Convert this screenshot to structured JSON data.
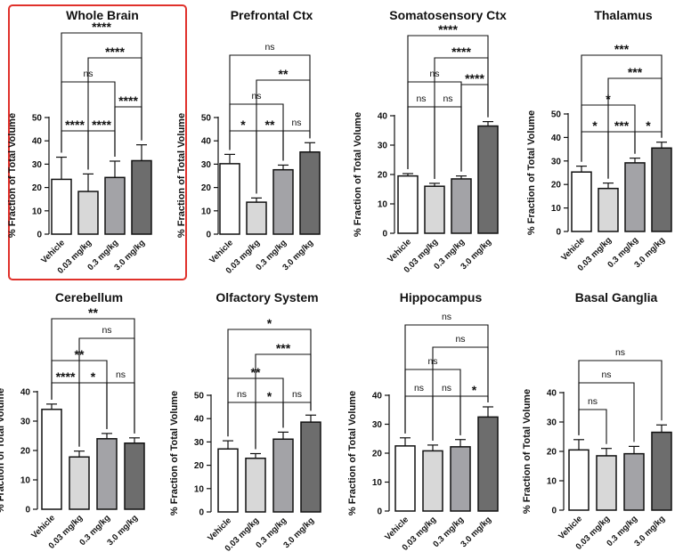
{
  "highlight_color": "#e0312b",
  "bar_fills": [
    "#ffffff",
    "#d8d8d8",
    "#a3a3a7",
    "#6d6d6d"
  ],
  "chart_data": [
    {
      "type": "bar",
      "title": "Whole Brain",
      "ylabel": "% Fraction of Total Volume",
      "categories": [
        "Vehicle",
        "0.03 mg/kg",
        "0.3 mg/kg",
        "3.0 mg/kg"
      ],
      "values": [
        23.5,
        18.3,
        24.3,
        31.5
      ],
      "errors": [
        9.5,
        7.5,
        7.0,
        6.8
      ],
      "ylim": [
        0,
        50
      ],
      "yticks": [
        0,
        10,
        20,
        30,
        40,
        50
      ],
      "highlighted": true,
      "comparisons": [
        {
          "pair": [
            0,
            1
          ],
          "label": "****"
        },
        {
          "pair": [
            2,
            3
          ],
          "label": "****"
        },
        {
          "pair": [
            1,
            2
          ],
          "label": "****"
        },
        {
          "pair": [
            0,
            2
          ],
          "label": "ns"
        },
        {
          "pair": [
            1,
            3
          ],
          "label": "****"
        },
        {
          "pair": [
            0,
            3
          ],
          "label": "****"
        }
      ]
    },
    {
      "type": "bar",
      "title": "Prefrontal Ctx",
      "ylabel": "% Fraction of Total Volume",
      "categories": [
        "Vehicle",
        "0.03 mg/kg",
        "0.3 mg/kg",
        "3.0 mg/kg"
      ],
      "values": [
        30.2,
        13.7,
        27.6,
        35.2
      ],
      "errors": [
        4.0,
        1.8,
        2.0,
        4.0
      ],
      "ylim": [
        0,
        50
      ],
      "yticks": [
        0,
        10,
        20,
        30,
        40,
        50
      ],
      "highlighted": false,
      "comparisons": [
        {
          "pair": [
            0,
            1
          ],
          "label": "*"
        },
        {
          "pair": [
            1,
            2
          ],
          "label": "**"
        },
        {
          "pair": [
            2,
            3
          ],
          "label": "ns"
        },
        {
          "pair": [
            0,
            2
          ],
          "label": "ns"
        },
        {
          "pair": [
            1,
            3
          ],
          "label": "**"
        },
        {
          "pair": [
            0,
            3
          ],
          "label": "ns"
        }
      ]
    },
    {
      "type": "bar",
      "title": "Somatosensory Ctx",
      "ylabel": "% Fraction of Total Volume",
      "categories": [
        "Vehicle",
        "0.03 mg/kg",
        "0.3 mg/kg",
        "3.0 mg/kg"
      ],
      "values": [
        19.5,
        16.0,
        18.5,
        36.5
      ],
      "errors": [
        0.8,
        1.0,
        1.0,
        1.5
      ],
      "ylim": [
        0,
        40
      ],
      "yticks": [
        0,
        10,
        20,
        30,
        40
      ],
      "highlighted": false,
      "comparisons": [
        {
          "pair": [
            0,
            1
          ],
          "label": "ns"
        },
        {
          "pair": [
            1,
            2
          ],
          "label": "ns"
        },
        {
          "pair": [
            2,
            3
          ],
          "label": "****"
        },
        {
          "pair": [
            0,
            2
          ],
          "label": "ns"
        },
        {
          "pair": [
            1,
            3
          ],
          "label": "****"
        },
        {
          "pair": [
            0,
            3
          ],
          "label": "****"
        }
      ]
    },
    {
      "type": "bar",
      "title": "Thalamus",
      "ylabel": "% Fraction of Total Volume",
      "categories": [
        "Vehicle",
        "0.03 mg/kg",
        "0.3 mg/kg",
        "3.0 mg/kg"
      ],
      "values": [
        25.3,
        18.3,
        29.2,
        35.5
      ],
      "errors": [
        2.5,
        2.3,
        2.0,
        2.5
      ],
      "ylim": [
        0,
        50
      ],
      "yticks": [
        0,
        10,
        20,
        30,
        40,
        50
      ],
      "highlighted": false,
      "comparisons": [
        {
          "pair": [
            0,
            1
          ],
          "label": "*"
        },
        {
          "pair": [
            1,
            2
          ],
          "label": "***"
        },
        {
          "pair": [
            2,
            3
          ],
          "label": "*"
        },
        {
          "pair": [
            0,
            2
          ],
          "label": "*"
        },
        {
          "pair": [
            1,
            3
          ],
          "label": "***"
        },
        {
          "pair": [
            0,
            3
          ],
          "label": "***"
        }
      ]
    },
    {
      "type": "bar",
      "title": "Cerebellum",
      "ylabel": "% Fraction of Total Volume",
      "categories": [
        "Vehicle",
        "0.03 mg/kg",
        "0.3 mg/kg",
        "3.0 mg/kg"
      ],
      "values": [
        34.0,
        17.8,
        24.0,
        22.5
      ],
      "errors": [
        1.8,
        2.0,
        1.8,
        1.8
      ],
      "ylim": [
        0,
        40
      ],
      "yticks": [
        0,
        10,
        20,
        30,
        40
      ],
      "highlighted": false,
      "comparisons": [
        {
          "pair": [
            0,
            1
          ],
          "label": "****"
        },
        {
          "pair": [
            1,
            2
          ],
          "label": "*"
        },
        {
          "pair": [
            2,
            3
          ],
          "label": "ns"
        },
        {
          "pair": [
            0,
            2
          ],
          "label": "**"
        },
        {
          "pair": [
            1,
            3
          ],
          "label": "ns"
        },
        {
          "pair": [
            0,
            3
          ],
          "label": "**"
        }
      ]
    },
    {
      "type": "bar",
      "title": "Olfactory System",
      "ylabel": "% Fraction of Total Volume",
      "categories": [
        "Vehicle",
        "0.03 mg/kg",
        "0.3 mg/kg",
        "3.0 mg/kg"
      ],
      "values": [
        27.0,
        23.0,
        31.2,
        38.5
      ],
      "errors": [
        3.5,
        2.0,
        3.0,
        3.0
      ],
      "ylim": [
        0,
        50
      ],
      "yticks": [
        0,
        10,
        20,
        30,
        40,
        50
      ],
      "highlighted": false,
      "comparisons": [
        {
          "pair": [
            0,
            1
          ],
          "label": "ns"
        },
        {
          "pair": [
            1,
            2
          ],
          "label": "*"
        },
        {
          "pair": [
            2,
            3
          ],
          "label": "ns"
        },
        {
          "pair": [
            0,
            2
          ],
          "label": "**"
        },
        {
          "pair": [
            1,
            3
          ],
          "label": "***"
        },
        {
          "pair": [
            0,
            3
          ],
          "label": "*"
        }
      ]
    },
    {
      "type": "bar",
      "title": "Hippocampus",
      "ylabel": "% Fraction of Total Volume",
      "categories": [
        "Vehicle",
        "0.03 mg/kg",
        "0.3 mg/kg",
        "3.0 mg/kg"
      ],
      "values": [
        22.5,
        20.8,
        22.2,
        32.5
      ],
      "errors": [
        2.8,
        2.0,
        2.5,
        3.5
      ],
      "ylim": [
        0,
        40
      ],
      "yticks": [
        0,
        10,
        20,
        30,
        40
      ],
      "highlighted": false,
      "comparisons": [
        {
          "pair": [
            0,
            1
          ],
          "label": "ns"
        },
        {
          "pair": [
            1,
            2
          ],
          "label": "ns"
        },
        {
          "pair": [
            2,
            3
          ],
          "label": "*"
        },
        {
          "pair": [
            0,
            2
          ],
          "label": "ns"
        },
        {
          "pair": [
            1,
            3
          ],
          "label": "ns"
        },
        {
          "pair": [
            0,
            3
          ],
          "label": "ns"
        }
      ]
    },
    {
      "type": "bar",
      "title": "Basal Ganglia",
      "ylabel": "% Fraction of Total Volume",
      "categories": [
        "Vehicle",
        "0.03 mg/kg",
        "0.3 mg/kg",
        "3.0 mg/kg"
      ],
      "values": [
        20.5,
        18.5,
        19.2,
        26.5
      ],
      "errors": [
        3.5,
        2.5,
        2.5,
        2.5
      ],
      "ylim": [
        0,
        40
      ],
      "yticks": [
        0,
        10,
        20,
        30,
        40
      ],
      "highlighted": false,
      "comparisons": [
        {
          "pair": [
            0,
            1
          ],
          "label": "ns"
        },
        {
          "pair": [
            0,
            2
          ],
          "label": "ns"
        },
        {
          "pair": [
            0,
            3
          ],
          "label": "ns"
        }
      ]
    }
  ]
}
